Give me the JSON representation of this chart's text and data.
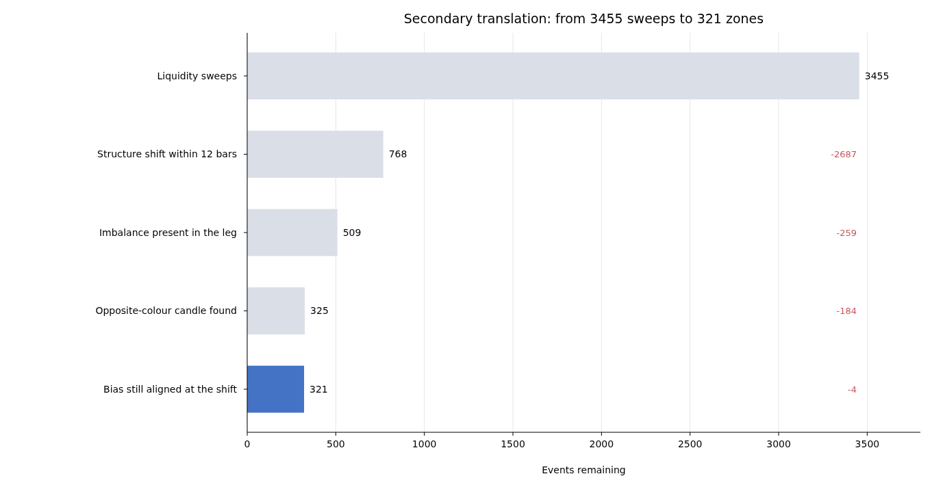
{
  "chart_data": {
    "type": "bar",
    "orientation": "horizontal",
    "title": "Secondary translation: from 3455 sweeps to 321 zones",
    "xlabel": "Events remaining",
    "categories": [
      "Liquidity sweeps",
      "Structure shift within 12 bars",
      "Imbalance present in the leg",
      "Opposite-colour candle found",
      "Bias still aligned at the shift"
    ],
    "values": [
      3455,
      768,
      509,
      325,
      321
    ],
    "colors": [
      "#dadee6",
      "#dadee6",
      "#dadee6",
      "#dadee6",
      "#4472c4"
    ],
    "xlim": [
      0,
      3800
    ],
    "xticks": [
      0,
      500,
      1000,
      1500,
      2000,
      2500,
      3000,
      3500
    ],
    "grid": "x",
    "data_labels": true,
    "annotations": [
      "-2687",
      "-259",
      "-184",
      "-4"
    ]
  }
}
